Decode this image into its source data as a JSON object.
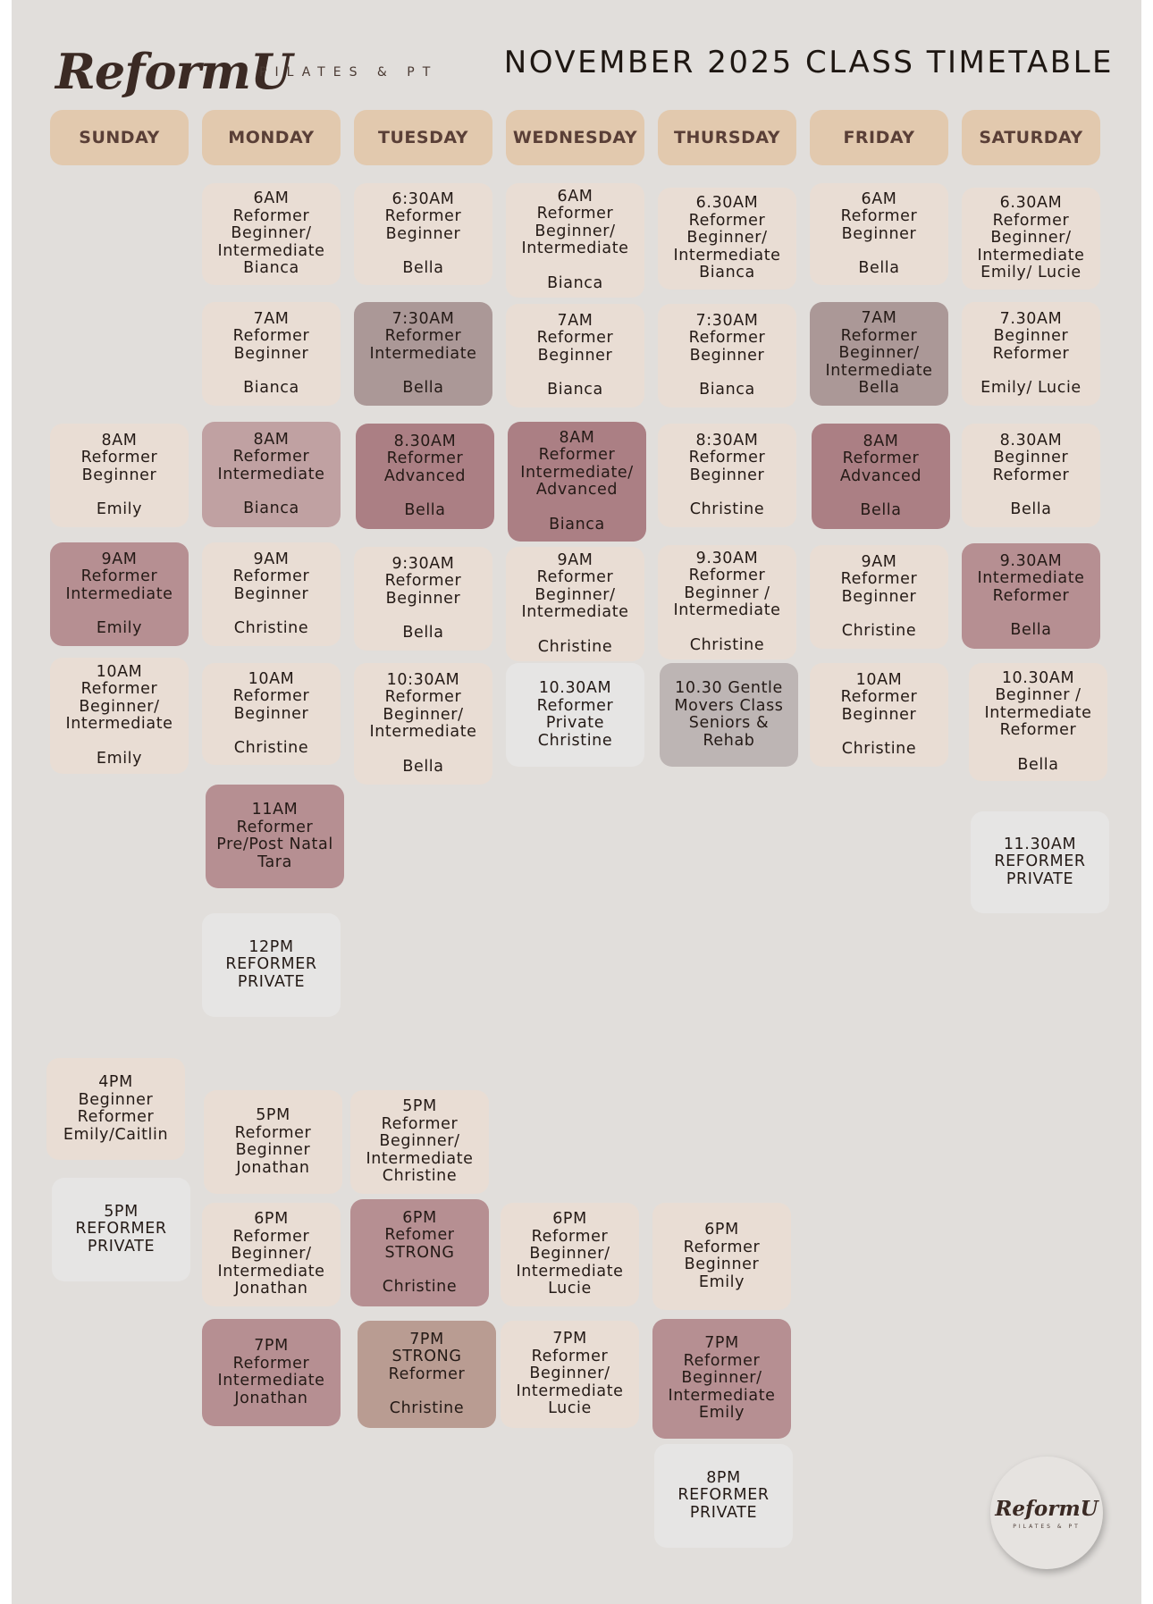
{
  "brand": {
    "name": "ReformU",
    "tagline": "PILATES & PT"
  },
  "title": "NOVEMBER 2025 CLASS TIMETABLE",
  "days": [
    "SUNDAY",
    "MONDAY",
    "TUESDAY",
    "WEDNESDAY",
    "THURSDAY",
    "FRIDAY",
    "SATURDAY"
  ],
  "colors": {
    "light": "#e9ddd4",
    "mauve": "#c0a1a2",
    "rose": "#b68f92",
    "deep": "#ab7f84",
    "taupe": "#ab9897",
    "white": "#e6e5e4",
    "gray": "#bdb5b4",
    "tan": "#b99c92",
    "header": "#e2c9ae"
  },
  "classes": {
    "mon_6am": [
      "6AM",
      "Reformer",
      "Beginner/",
      "Intermediate",
      "Bianca"
    ],
    "tue_630am": [
      "6:30AM",
      "Reformer",
      "Beginner",
      "",
      "Bella"
    ],
    "wed_6am": [
      "6AM",
      "Reformer",
      "Beginner/",
      "Intermediate",
      "",
      "Bianca"
    ],
    "thu_630am": [
      "6.30AM",
      "Reformer",
      "Beginner/",
      "Intermediate",
      "Bianca"
    ],
    "fri_6am": [
      "6AM",
      "Reformer",
      "Beginner",
      "",
      "Bella"
    ],
    "sat_630am": [
      "6.30AM",
      "Reformer",
      "Beginner/",
      "Intermediate",
      "Emily/ Lucie"
    ],
    "mon_7am": [
      "7AM",
      "Reformer",
      "Beginner",
      "",
      "Bianca"
    ],
    "tue_730am": [
      "7:30AM",
      "Reformer",
      "Intermediate",
      "",
      "Bella"
    ],
    "wed_7am": [
      "7AM",
      "Reformer",
      "Beginner",
      "",
      "Bianca"
    ],
    "thu_730am": [
      "7:30AM",
      "Reformer",
      "Beginner",
      "",
      "Bianca"
    ],
    "fri_7am": [
      "7AM",
      "Reformer",
      "Beginner/",
      "Intermediate",
      "Bella"
    ],
    "sat_730am": [
      "7.30AM",
      "Beginner",
      "Reformer",
      "",
      "Emily/ Lucie"
    ],
    "sun_8am": [
      "8AM",
      "Reformer",
      "Beginner",
      "",
      "Emily"
    ],
    "mon_8am": [
      "8AM",
      "Reformer",
      "Intermediate",
      "",
      "Bianca"
    ],
    "tue_830am": [
      "8.30AM",
      "Reformer",
      "Advanced",
      "",
      "Bella"
    ],
    "wed_8am": [
      "8AM",
      "Reformer",
      "Intermediate/",
      "Advanced",
      "",
      "Bianca"
    ],
    "thu_830am": [
      "8:30AM",
      "Reformer",
      "Beginner",
      "",
      "Christine"
    ],
    "fri_8am": [
      "8AM",
      "Reformer",
      "Advanced",
      "",
      "Bella"
    ],
    "sat_830am": [
      "8.30AM",
      "Beginner",
      "Reformer",
      "",
      "Bella"
    ],
    "sun_9am": [
      "9AM",
      "Reformer",
      "Intermediate",
      "",
      "Emily"
    ],
    "mon_9am": [
      "9AM",
      "Reformer",
      "Beginner",
      "",
      "Christine"
    ],
    "tue_930am": [
      "9:30AM",
      "Reformer",
      "Beginner",
      "",
      "Bella"
    ],
    "wed_9am": [
      "9AM",
      "Reformer",
      "Beginner/",
      "Intermediate",
      "",
      "Christine"
    ],
    "thu_930am": [
      "9.30AM",
      "Reformer",
      "Beginner /",
      "Intermediate",
      "",
      "Christine"
    ],
    "fri_9am": [
      "9AM",
      "Reformer",
      "Beginner",
      "",
      "Christine"
    ],
    "sat_930am": [
      "9.30AM",
      "Intermediate",
      "Reformer",
      "",
      "Bella"
    ],
    "sun_10am": [
      "10AM",
      "Reformer",
      "Beginner/",
      "Intermediate",
      "",
      "Emily"
    ],
    "mon_10am": [
      "10AM",
      "Reformer",
      "Beginner",
      "",
      "Christine"
    ],
    "tue_1030am": [
      "10:30AM",
      "Reformer",
      "Beginner/",
      "Intermediate",
      "",
      "Bella"
    ],
    "wed_1030am": [
      "10.30AM",
      "Reformer",
      "Private",
      "Christine"
    ],
    "thu_1030": [
      "10.30 Gentle",
      "Movers Class",
      "Seniors &",
      "Rehab"
    ],
    "fri_10am": [
      "10AM",
      "Reformer",
      "Beginner",
      "",
      "Christine"
    ],
    "sat_1030am": [
      "10.30AM",
      "Beginner /",
      "Intermediate",
      "Reformer",
      "",
      "Bella"
    ],
    "mon_11am": [
      "11AM",
      "Reformer",
      "Pre/Post Natal",
      "Tara"
    ],
    "sat_1130am": [
      "11.30AM",
      "REFORMER",
      "PRIVATE"
    ],
    "mon_12pm": [
      "12PM",
      "REFORMER",
      "PRIVATE"
    ],
    "sun_4pm": [
      "4PM",
      "Beginner",
      "Reformer",
      "Emily/Caitlin"
    ],
    "mon_5pm": [
      "5PM",
      "Reformer",
      "Beginner",
      "Jonathan"
    ],
    "tue_5pm": [
      "5PM",
      "Reformer",
      "Beginner/",
      "Intermediate",
      "Christine"
    ],
    "sun_5pm": [
      "5PM",
      "REFORMER",
      "PRIVATE"
    ],
    "mon_6pm": [
      "6PM",
      "Reformer",
      "Beginner/",
      "Intermediate",
      "Jonathan"
    ],
    "tue_6pm": [
      "6PM",
      "Refomer",
      "STRONG",
      "",
      "Christine"
    ],
    "wed_6pm": [
      "6PM",
      "Reformer",
      "Beginner/",
      "Intermediate",
      "Lucie"
    ],
    "thu_6pm": [
      "6PM",
      "Reformer",
      "Beginner",
      "Emily"
    ],
    "mon_7pm": [
      "7PM",
      "Reformer",
      "Intermediate",
      "Jonathan"
    ],
    "tue_7pm": [
      "7PM",
      "STRONG",
      "Reformer",
      "",
      "Christine"
    ],
    "wed_7pm": [
      "7PM",
      "Reformer",
      "Beginner/",
      "Intermediate",
      "Lucie"
    ],
    "thu_7pm": [
      "7PM",
      "Reformer",
      "Beginner/",
      "Intermediate",
      "Emily"
    ],
    "thu_8pm": [
      "8PM",
      "REFORMER",
      "PRIVATE"
    ]
  }
}
